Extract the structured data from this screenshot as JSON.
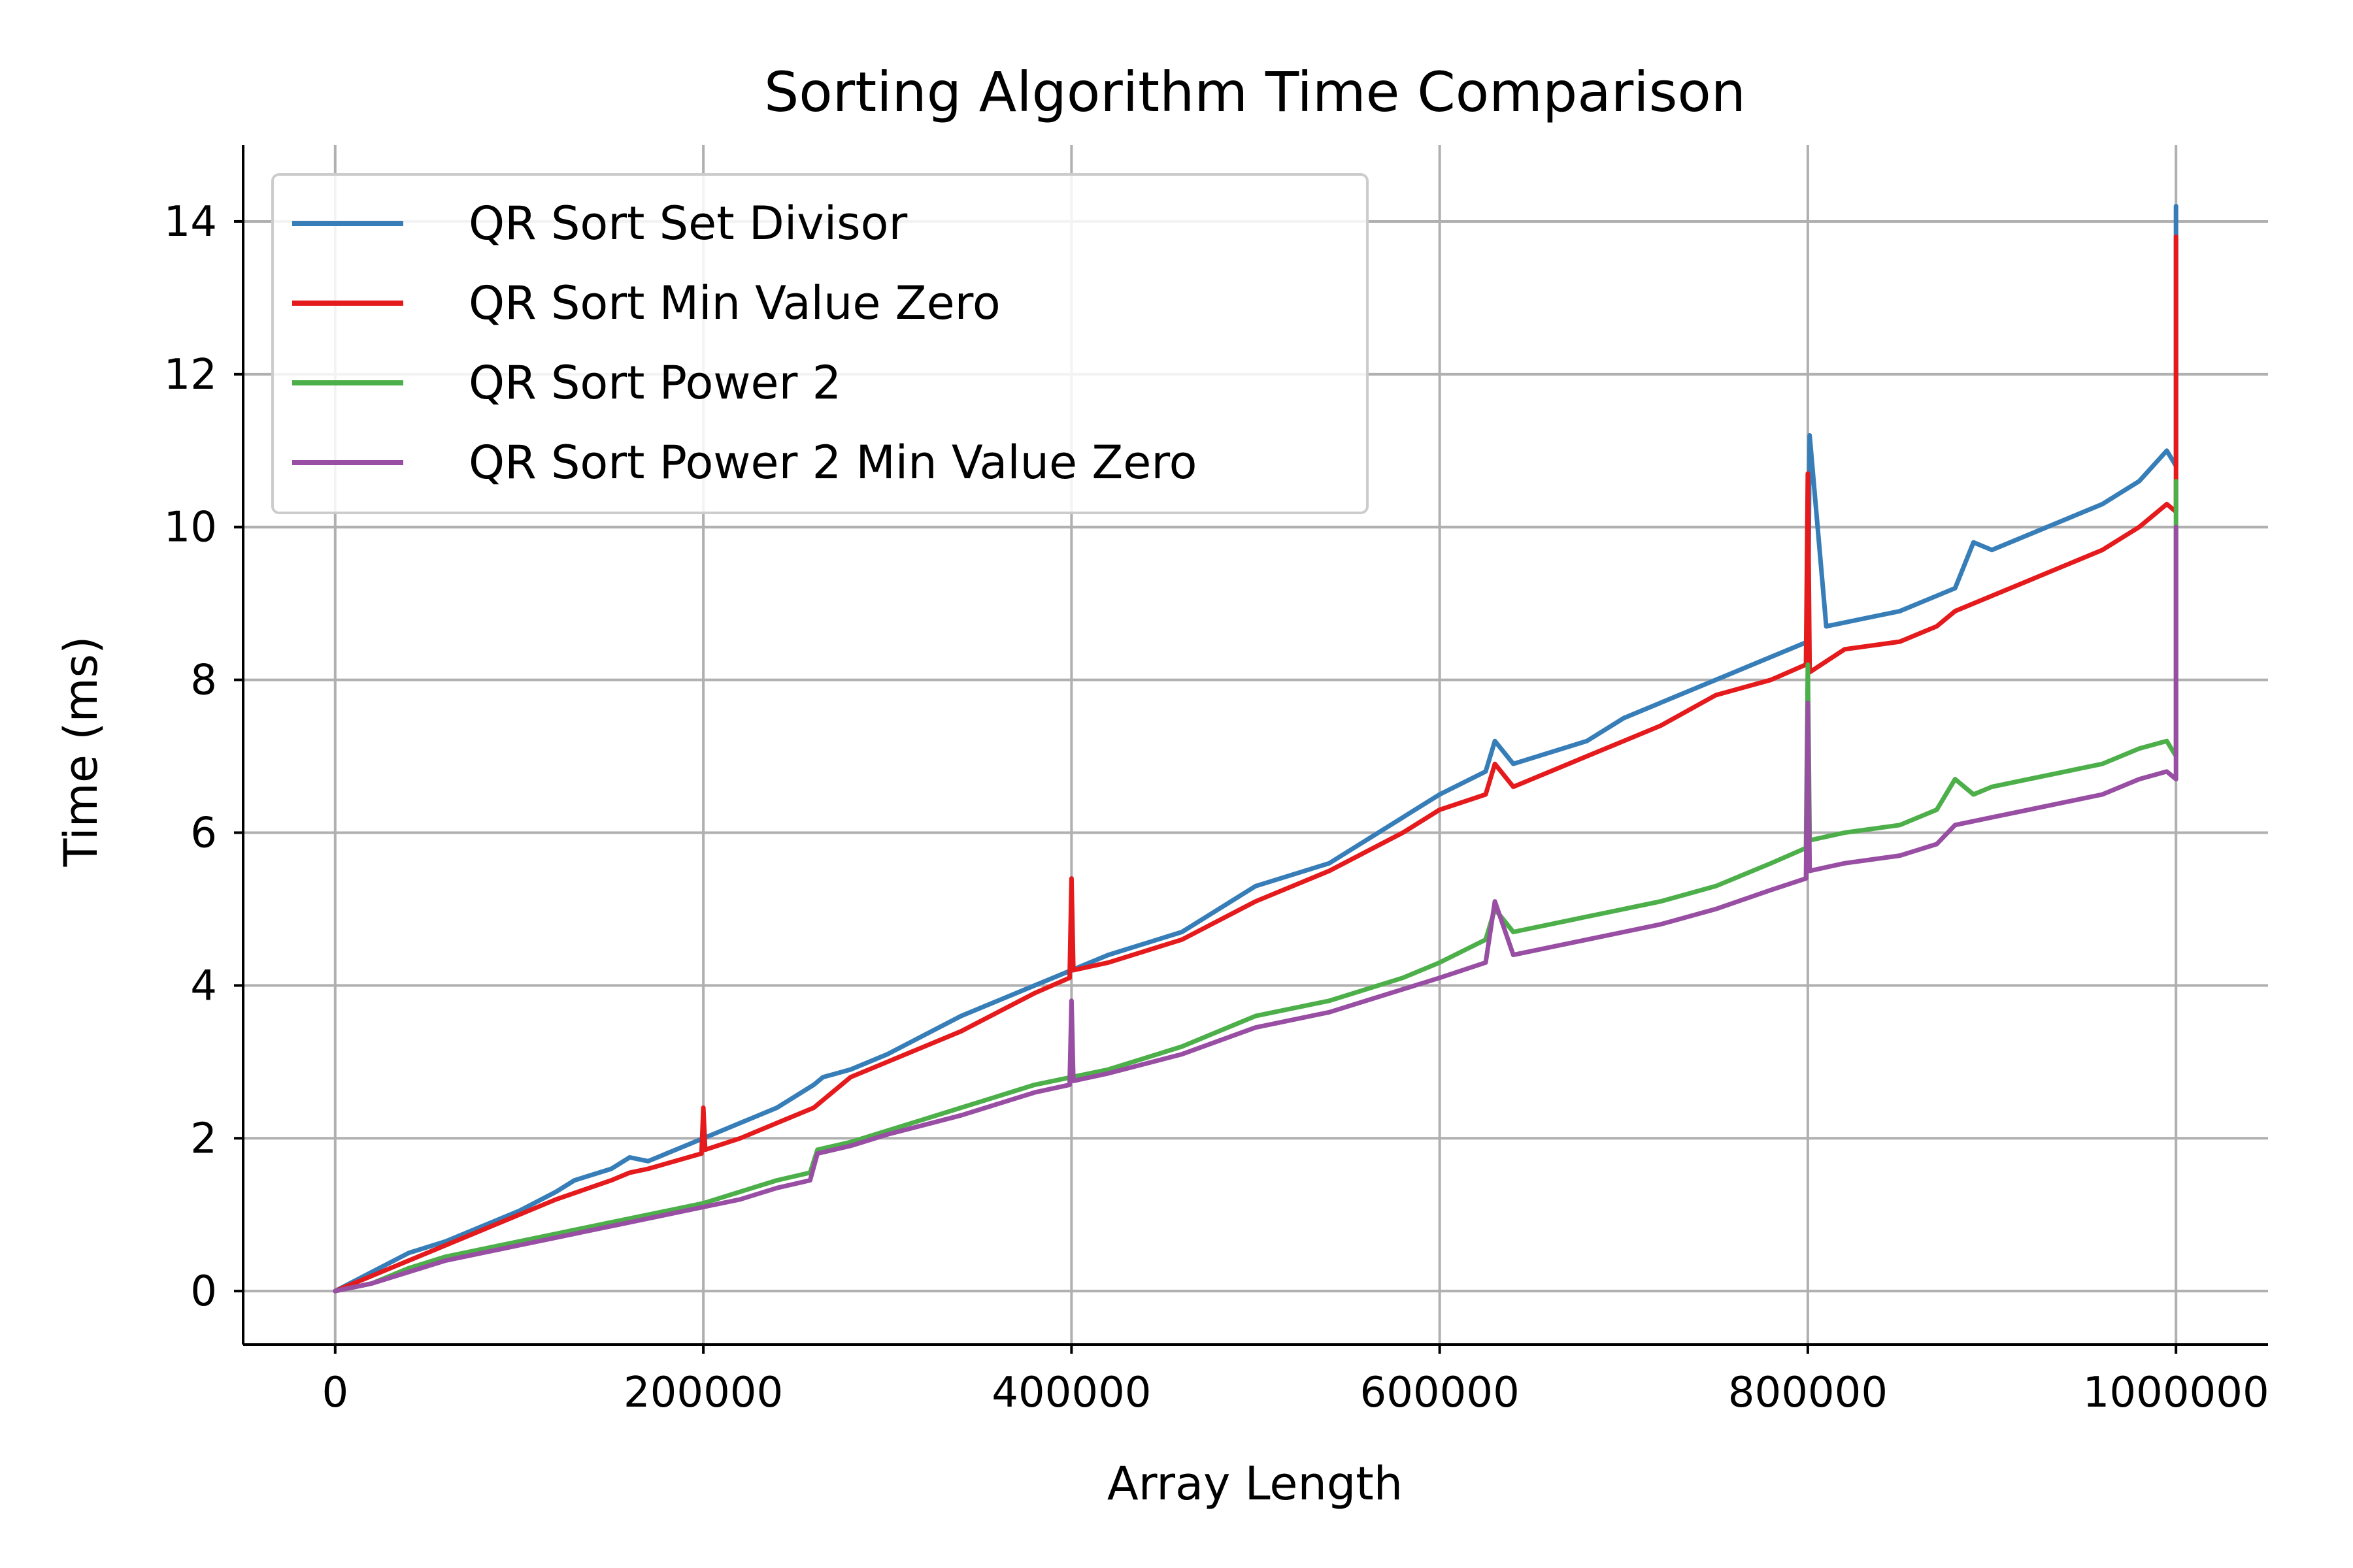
{
  "chart_data": {
    "type": "line",
    "title": "Sorting Algorithm Time Comparison",
    "xlabel": "Array Length",
    "ylabel": "Time (ms)",
    "xlim": [
      -50000,
      1050000
    ],
    "ylim": [
      -0.7,
      15.0
    ],
    "xticks": [
      0,
      200000,
      400000,
      600000,
      800000,
      1000000
    ],
    "xtick_labels": [
      "0",
      "200000",
      "400000",
      "600000",
      "800000",
      "1000000"
    ],
    "yticks": [
      0,
      2,
      4,
      6,
      8,
      10,
      12,
      14
    ],
    "ytick_labels": [
      "0",
      "2",
      "4",
      "6",
      "8",
      "10",
      "12",
      "14"
    ],
    "grid": true,
    "legend_position": "upper-left",
    "series": [
      {
        "name": "QR Sort Set Divisor",
        "color": "#377eb8",
        "x": [
          0,
          20000,
          40000,
          60000,
          80000,
          100000,
          120000,
          130000,
          150000,
          160000,
          170000,
          200000,
          220000,
          240000,
          260000,
          265000,
          280000,
          300000,
          340000,
          380000,
          400000,
          420000,
          460000,
          500000,
          540000,
          580000,
          600000,
          625000,
          630000,
          640000,
          680000,
          700000,
          720000,
          750000,
          780000,
          800000,
          801000,
          810000,
          830000,
          850000,
          860000,
          880000,
          890000,
          900000,
          920000,
          940000,
          960000,
          980000,
          995000,
          1000000,
          1000000
        ],
        "y": [
          0.0,
          0.25,
          0.5,
          0.65,
          0.85,
          1.05,
          1.3,
          1.45,
          1.6,
          1.75,
          1.7,
          2.0,
          2.2,
          2.4,
          2.7,
          2.8,
          2.9,
          3.1,
          3.6,
          4.0,
          4.2,
          4.4,
          4.7,
          5.3,
          5.6,
          6.2,
          6.5,
          6.8,
          7.2,
          6.9,
          7.2,
          7.5,
          7.7,
          8.0,
          8.3,
          8.5,
          11.2,
          8.7,
          8.8,
          8.9,
          9.0,
          9.2,
          9.8,
          9.7,
          9.9,
          10.1,
          10.3,
          10.6,
          11.0,
          10.8,
          14.2
        ]
      },
      {
        "name": "QR Sort Min Value Zero",
        "color": "#e41a1c",
        "x": [
          0,
          20000,
          40000,
          60000,
          80000,
          100000,
          120000,
          150000,
          160000,
          170000,
          199000,
          200000,
          201000,
          220000,
          240000,
          260000,
          280000,
          300000,
          340000,
          380000,
          399000,
          400000,
          401000,
          420000,
          460000,
          500000,
          540000,
          580000,
          600000,
          625000,
          630000,
          640000,
          680000,
          700000,
          720000,
          750000,
          780000,
          799000,
          800000,
          801000,
          820000,
          850000,
          870000,
          880000,
          900000,
          920000,
          940000,
          960000,
          980000,
          995000,
          1000000,
          1000000
        ],
        "y": [
          0.0,
          0.2,
          0.4,
          0.6,
          0.8,
          1.0,
          1.2,
          1.45,
          1.55,
          1.6,
          1.8,
          2.4,
          1.85,
          2.0,
          2.2,
          2.4,
          2.8,
          3.0,
          3.4,
          3.9,
          4.1,
          5.4,
          4.2,
          4.3,
          4.6,
          5.1,
          5.5,
          6.0,
          6.3,
          6.5,
          6.9,
          6.6,
          7.0,
          7.2,
          7.4,
          7.8,
          8.0,
          8.2,
          10.7,
          8.1,
          8.4,
          8.5,
          8.7,
          8.9,
          9.1,
          9.3,
          9.5,
          9.7,
          10.0,
          10.3,
          10.2,
          13.8
        ]
      },
      {
        "name": "QR Sort Power 2",
        "color": "#4daf4a",
        "x": [
          0,
          20000,
          40000,
          60000,
          80000,
          100000,
          120000,
          140000,
          160000,
          180000,
          200000,
          220000,
          240000,
          258000,
          262000,
          280000,
          300000,
          340000,
          380000,
          400000,
          420000,
          460000,
          500000,
          540000,
          580000,
          600000,
          625000,
          630000,
          640000,
          680000,
          700000,
          720000,
          750000,
          780000,
          799000,
          800000,
          801000,
          820000,
          850000,
          870000,
          880000,
          890000,
          900000,
          920000,
          940000,
          960000,
          980000,
          995000,
          1000000,
          1000000
        ],
        "y": [
          0.0,
          0.1,
          0.3,
          0.45,
          0.55,
          0.65,
          0.75,
          0.85,
          0.95,
          1.05,
          1.15,
          1.3,
          1.45,
          1.55,
          1.85,
          1.95,
          2.1,
          2.4,
          2.7,
          2.8,
          2.9,
          3.2,
          3.6,
          3.8,
          4.1,
          4.3,
          4.6,
          5.0,
          4.7,
          4.9,
          5.0,
          5.1,
          5.3,
          5.6,
          5.8,
          8.2,
          5.9,
          6.0,
          6.1,
          6.3,
          6.7,
          6.5,
          6.6,
          6.7,
          6.8,
          6.9,
          7.1,
          7.2,
          7.0,
          10.6
        ]
      },
      {
        "name": "QR Sort Power 2 Min Value Zero",
        "color": "#984ea3",
        "x": [
          0,
          20000,
          40000,
          60000,
          80000,
          100000,
          120000,
          140000,
          160000,
          180000,
          200000,
          220000,
          240000,
          258000,
          262000,
          280000,
          300000,
          340000,
          380000,
          399000,
          400000,
          401000,
          420000,
          460000,
          500000,
          540000,
          580000,
          600000,
          625000,
          630000,
          640000,
          680000,
          700000,
          720000,
          750000,
          780000,
          799000,
          800000,
          801000,
          820000,
          850000,
          870000,
          880000,
          900000,
          920000,
          940000,
          960000,
          980000,
          995000,
          1000000,
          1000000
        ],
        "y": [
          0.0,
          0.1,
          0.25,
          0.4,
          0.5,
          0.6,
          0.7,
          0.8,
          0.9,
          1.0,
          1.1,
          1.2,
          1.35,
          1.45,
          1.8,
          1.9,
          2.05,
          2.3,
          2.6,
          2.7,
          3.8,
          2.75,
          2.85,
          3.1,
          3.45,
          3.65,
          3.95,
          4.1,
          4.3,
          5.1,
          4.4,
          4.6,
          4.7,
          4.8,
          5.0,
          5.25,
          5.4,
          7.7,
          5.5,
          5.6,
          5.7,
          5.85,
          6.1,
          6.2,
          6.3,
          6.4,
          6.5,
          6.7,
          6.8,
          6.7,
          10.0
        ]
      }
    ]
  }
}
